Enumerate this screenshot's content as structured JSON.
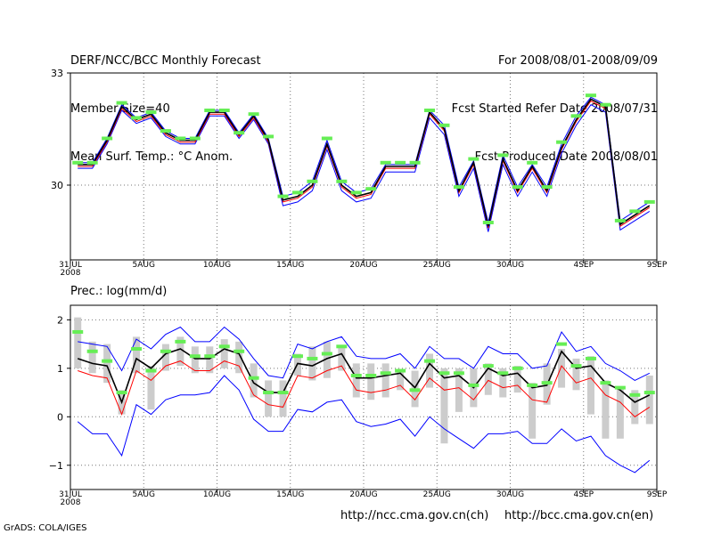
{
  "header": {
    "left": [
      "DERF/NCC/BCC Monthly Forecast",
      "Member Size=40",
      "Mean Surf. Temp.: °C Anom."
    ],
    "right": [
      "For 2008/08/01-2008/09/09",
      "Fcst Started Refer Date 2008/07/31",
      "Fcst Produced Date 2008/08/01"
    ]
  },
  "footer": {
    "url1": "http://ncc.cma.gov.cn(ch)",
    "url2": "http://bcc.cma.gov.cn(en)",
    "grads": "GrADS: COLA/IGES"
  },
  "chart_data": [
    {
      "type": "line",
      "title": "Mean Surf. Temp.: °C Anom.",
      "x_ticks": [
        "31JUL",
        "5AUG",
        "10AUG",
        "15AUG",
        "20AUG",
        "25AUG",
        "30AUG",
        "4SEP",
        "9SEP"
      ],
      "x_tick_sublabel": "2008",
      "x_range": [
        0,
        40
      ],
      "y_ticks": [
        30,
        33
      ],
      "ylim": [
        28,
        33
      ],
      "grid": true,
      "series": [
        {
          "name": "ensemble mean",
          "color": "#000000",
          "values": [
            30.55,
            30.55,
            31.2,
            32.1,
            31.75,
            31.9,
            31.4,
            31.2,
            31.2,
            31.95,
            31.95,
            31.35,
            31.85,
            31.2,
            29.6,
            29.7,
            30.0,
            31.1,
            30.0,
            29.7,
            29.8,
            30.5,
            30.5,
            30.5,
            31.95,
            31.5,
            29.85,
            30.6,
            28.9,
            30.7,
            29.85,
            30.5,
            29.85,
            31.0,
            31.75,
            32.3,
            32.1,
            28.95,
            29.2,
            29.45
          ]
        },
        {
          "name": "upper member",
          "color": "#0000ff",
          "values": [
            30.6,
            30.6,
            31.25,
            32.15,
            31.8,
            31.95,
            31.45,
            31.25,
            31.25,
            32.0,
            32.0,
            31.4,
            31.9,
            31.25,
            29.7,
            29.8,
            30.1,
            31.2,
            30.1,
            29.8,
            29.9,
            30.55,
            30.55,
            30.55,
            32.0,
            31.6,
            29.95,
            30.65,
            29.0,
            30.8,
            29.95,
            30.55,
            29.95,
            31.1,
            31.85,
            32.35,
            32.15,
            29.05,
            29.3,
            29.55
          ]
        },
        {
          "name": "lower member",
          "color": "#0000ff",
          "values": [
            30.45,
            30.45,
            31.1,
            32.0,
            31.65,
            31.8,
            31.3,
            31.1,
            31.1,
            31.85,
            31.85,
            31.25,
            31.75,
            31.1,
            29.45,
            29.55,
            29.85,
            30.95,
            29.85,
            29.55,
            29.65,
            30.35,
            30.35,
            30.35,
            31.8,
            31.35,
            29.7,
            30.45,
            28.75,
            30.55,
            29.7,
            30.35,
            29.7,
            30.85,
            31.6,
            32.15,
            31.95,
            28.8,
            29.05,
            29.3
          ]
        },
        {
          "name": "red member",
          "color": "#ff0000",
          "values": [
            30.5,
            30.5,
            31.15,
            32.05,
            31.7,
            31.85,
            31.35,
            31.15,
            31.15,
            31.9,
            31.9,
            31.3,
            31.8,
            31.15,
            29.55,
            29.65,
            29.95,
            31.05,
            29.95,
            29.65,
            29.75,
            30.45,
            30.45,
            30.45,
            31.9,
            31.45,
            29.8,
            30.55,
            28.85,
            30.65,
            29.8,
            30.45,
            29.8,
            30.95,
            31.7,
            32.25,
            32.05,
            28.9,
            29.15,
            29.4
          ]
        },
        {
          "name": "reference (green markers)",
          "color": "#66ee55",
          "values": [
            30.6,
            30.6,
            31.25,
            32.2,
            31.8,
            31.95,
            31.45,
            31.25,
            31.25,
            32.0,
            32.0,
            31.4,
            31.9,
            31.3,
            29.7,
            29.8,
            30.1,
            31.25,
            30.1,
            29.8,
            29.9,
            30.6,
            30.6,
            30.6,
            32.0,
            31.6,
            29.95,
            30.7,
            29.0,
            30.8,
            29.95,
            30.6,
            29.95,
            31.15,
            31.85,
            32.4,
            32.15,
            29.05,
            29.3,
            29.55
          ]
        }
      ]
    },
    {
      "type": "line",
      "title": "Prec.: log(mm/d)",
      "x_ticks": [
        "31JUL",
        "5AUG",
        "10AUG",
        "15AUG",
        "20AUG",
        "25AUG",
        "30AUG",
        "4SEP",
        "9SEP"
      ],
      "x_tick_sublabel": "2008",
      "x_range": [
        0,
        40
      ],
      "y_ticks": [
        2,
        1,
        0,
        -1
      ],
      "ylim": [
        -1.5,
        2.3
      ],
      "grid": true,
      "series": [
        {
          "name": "ensemble mean",
          "color": "#000000",
          "values": [
            1.2,
            1.1,
            1.05,
            0.3,
            1.2,
            1.0,
            1.3,
            1.4,
            1.2,
            1.2,
            1.4,
            1.3,
            0.7,
            0.5,
            0.5,
            1.1,
            1.05,
            1.2,
            1.3,
            0.8,
            0.8,
            0.85,
            0.9,
            0.6,
            1.1,
            0.8,
            0.85,
            0.6,
            1.0,
            0.85,
            0.9,
            0.6,
            0.65,
            1.35,
            1.0,
            1.05,
            0.7,
            0.55,
            0.3,
            0.45
          ]
        },
        {
          "name": "upper bound",
          "color": "#0000ff",
          "values": [
            1.55,
            1.5,
            1.45,
            0.95,
            1.6,
            1.4,
            1.7,
            1.85,
            1.55,
            1.55,
            1.85,
            1.6,
            1.2,
            0.85,
            0.8,
            1.5,
            1.4,
            1.55,
            1.65,
            1.25,
            1.2,
            1.2,
            1.3,
            1.0,
            1.45,
            1.2,
            1.2,
            1.0,
            1.45,
            1.3,
            1.3,
            1.0,
            1.05,
            1.75,
            1.35,
            1.45,
            1.1,
            0.95,
            0.75,
            0.9
          ]
        },
        {
          "name": "lower bound",
          "color": "#0000ff",
          "values": [
            -0.1,
            -0.35,
            -0.35,
            -0.8,
            0.25,
            0.05,
            0.35,
            0.45,
            0.45,
            0.5,
            0.85,
            0.55,
            -0.05,
            -0.3,
            -0.3,
            0.15,
            0.1,
            0.3,
            0.35,
            -0.1,
            -0.2,
            -0.15,
            -0.05,
            -0.4,
            0.0,
            -0.25,
            -0.45,
            -0.65,
            -0.35,
            -0.35,
            -0.3,
            -0.55,
            -0.55,
            -0.25,
            -0.5,
            -0.4,
            -0.8,
            -1.0,
            -1.15,
            -0.9
          ]
        },
        {
          "name": "red member",
          "color": "#ff0000",
          "values": [
            0.95,
            0.85,
            0.8,
            0.05,
            0.95,
            0.75,
            1.05,
            1.15,
            0.95,
            0.95,
            1.15,
            1.05,
            0.45,
            0.25,
            0.2,
            0.85,
            0.8,
            0.95,
            1.05,
            0.55,
            0.5,
            0.55,
            0.65,
            0.35,
            0.8,
            0.55,
            0.6,
            0.35,
            0.75,
            0.6,
            0.65,
            0.35,
            0.3,
            1.05,
            0.7,
            0.8,
            0.45,
            0.3,
            0.0,
            0.2
          ]
        },
        {
          "name": "reference (green markers)",
          "color": "#66ee55",
          "values": [
            1.75,
            1.35,
            1.15,
            0.5,
            1.4,
            0.95,
            1.35,
            1.55,
            1.25,
            1.25,
            1.45,
            1.35,
            0.8,
            0.5,
            0.5,
            1.25,
            1.2,
            1.3,
            1.45,
            0.85,
            0.85,
            0.9,
            0.95,
            0.55,
            1.15,
            0.9,
            0.9,
            0.65,
            1.05,
            0.9,
            1.0,
            0.65,
            0.7,
            1.5,
            1.05,
            1.2,
            0.7,
            0.6,
            0.45,
            0.5
          ]
        },
        {
          "name": "spread bars (gray)",
          "color": "#cccccc",
          "range": [
            [
              1.0,
              2.05
            ],
            [
              0.9,
              1.55
            ],
            [
              0.7,
              1.5
            ],
            [
              0.05,
              0.55
            ],
            [
              0.9,
              1.65
            ],
            [
              0.15,
              1.05
            ],
            [
              0.95,
              1.5
            ],
            [
              1.05,
              1.65
            ],
            [
              0.9,
              1.45
            ],
            [
              0.9,
              1.45
            ],
            [
              1.0,
              1.6
            ],
            [
              0.9,
              1.55
            ],
            [
              0.4,
              1.1
            ],
            [
              0.0,
              0.75
            ],
            [
              0.0,
              0.75
            ],
            [
              0.85,
              1.3
            ],
            [
              0.75,
              1.45
            ],
            [
              0.8,
              1.55
            ],
            [
              0.95,
              1.45
            ],
            [
              0.4,
              1.1
            ],
            [
              0.35,
              1.1
            ],
            [
              0.4,
              1.1
            ],
            [
              0.55,
              0.95
            ],
            [
              0.2,
              0.95
            ],
            [
              0.6,
              1.3
            ],
            [
              -0.55,
              1.0
            ],
            [
              0.1,
              1.0
            ],
            [
              0.2,
              1.0
            ],
            [
              0.45,
              1.1
            ],
            [
              0.4,
              1.0
            ],
            [
              0.5,
              1.05
            ],
            [
              -0.45,
              0.7
            ],
            [
              0.25,
              1.1
            ],
            [
              0.6,
              1.4
            ],
            [
              0.55,
              1.2
            ],
            [
              0.05,
              1.25
            ],
            [
              -0.45,
              0.75
            ],
            [
              -0.45,
              0.6
            ],
            [
              -0.15,
              0.55
            ],
            [
              -0.15,
              0.85
            ]
          ]
        }
      ]
    }
  ]
}
